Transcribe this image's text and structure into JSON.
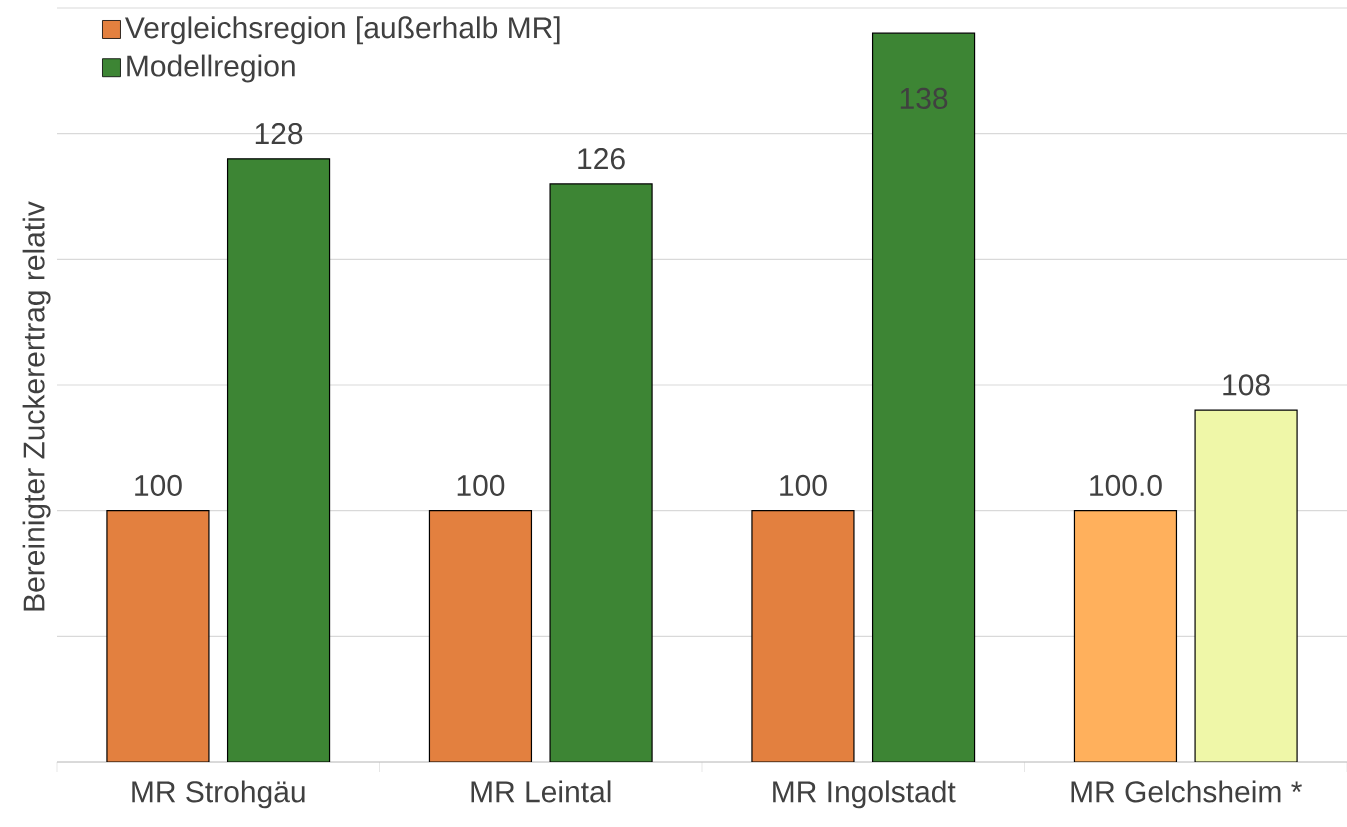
{
  "chart_data": {
    "type": "bar",
    "ylabel": "Bereinigter Zuckerertrag relativ",
    "categories": [
      "MR Strohgäu",
      "MR Leintal",
      "MR Ingolstadt",
      "MR Gelchsheim *"
    ],
    "series": [
      {
        "name": "Vergleichsregion [außerhalb MR]",
        "color": "#e3803f",
        "colors": [
          "#e3803f",
          "#e3803f",
          "#e3803f",
          "#ffb05c"
        ],
        "values": [
          100,
          100,
          100,
          100
        ],
        "value_labels": [
          "100",
          "100",
          "100",
          "100.0"
        ]
      },
      {
        "name": "Modellregion",
        "color": "#3d8534",
        "colors": [
          "#3d8534",
          "#3d8534",
          "#3d8534",
          "#eff7a8"
        ],
        "values": [
          128,
          126,
          138,
          108
        ],
        "value_labels": [
          "128",
          "126",
          "138",
          "108"
        ]
      }
    ],
    "ylim": [
      80,
      140
    ],
    "yticks": [
      {
        "value": 80,
        "label": null
      },
      {
        "value": 90,
        "label": null
      },
      {
        "value": 100,
        "label": null
      },
      {
        "value": 110,
        "label": null
      },
      {
        "value": 120,
        "label": null
      },
      {
        "value": 130,
        "label": null
      },
      {
        "value": 140,
        "label": null
      }
    ],
    "grid": "y",
    "legend": "top left",
    "tick_labels": "x"
  }
}
